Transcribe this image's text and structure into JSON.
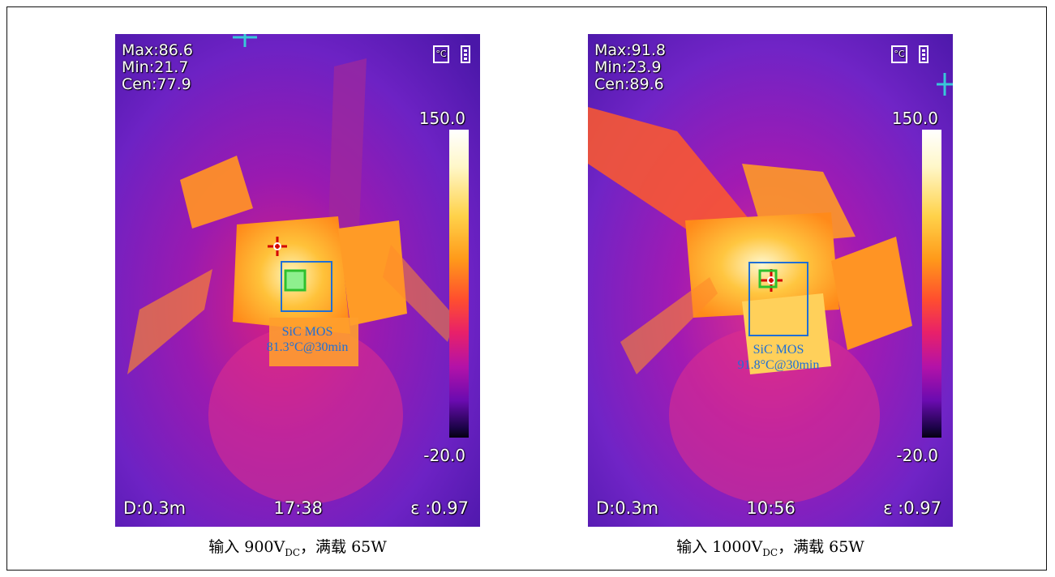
{
  "panels": [
    {
      "max_label": "Max:86.6",
      "min_label": "Min:21.7",
      "cen_label": "Cen:77.9",
      "scale_max": "150.0",
      "scale_min": "-20.0",
      "distance": "D:0.3m",
      "time": "17:38",
      "emissivity": "ε :0.97",
      "annotation_title": "SiC MOS",
      "annotation_value": "81.3°C@30min",
      "caption_prefix": "输入 900V",
      "caption_sub": "DC",
      "caption_suffix": "，满载 65W"
    },
    {
      "max_label": "Max:91.8",
      "min_label": "Min:23.9",
      "cen_label": "Cen:89.6",
      "scale_max": "150.0",
      "scale_min": "-20.0",
      "distance": "D:0.3m",
      "time": "10:56",
      "emissivity": "ε :0.97",
      "annotation_title": "SiC MOS",
      "annotation_value": "91.8°C@30min",
      "caption_prefix": "输入 1000V",
      "caption_sub": "DC",
      "caption_suffix": "，满载 65W"
    }
  ],
  "icons": [
    "thermometer-unit-icon",
    "battery-icon",
    "crosshair-icon",
    "center-box-icon"
  ],
  "colors": {
    "annotation": "#1f6fd6",
    "background_hot": "#ffb000",
    "background_cold": "#6e1fc0"
  }
}
